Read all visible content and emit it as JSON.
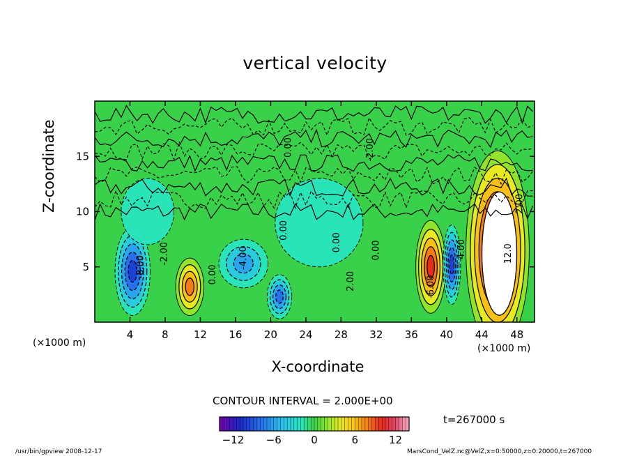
{
  "chart_data": {
    "type": "heatmap",
    "title": "vertical velocity",
    "xlabel": "X-coordinate",
    "ylabel": "Z-coordinate",
    "x_unit": "(×1000 m)",
    "y_unit": "(×1000 m)",
    "xlim": [
      0,
      50
    ],
    "ylim": [
      0,
      20
    ],
    "x_ticks": [
      4,
      8,
      12,
      16,
      20,
      24,
      28,
      32,
      36,
      40,
      44,
      48
    ],
    "y_ticks": [
      5,
      10,
      15
    ],
    "contour_interval_text": "CONTOUR INTERVAL = 2.000E+00",
    "contour_labels": [
      {
        "text": "-8.00",
        "x": 5.5,
        "z": 5.0
      },
      {
        "text": "-2.00",
        "x": 8.2,
        "z": 6.2
      },
      {
        "text": "0.00",
        "x": 13.7,
        "z": 4.3
      },
      {
        "text": "-4.00",
        "x": 17.2,
        "z": 5.8
      },
      {
        "text": "0.00",
        "x": 21.8,
        "z": 8.3
      },
      {
        "text": "0.00",
        "x": 27.8,
        "z": 7.2
      },
      {
        "text": "2.00",
        "x": 29.4,
        "z": 3.7
      },
      {
        "text": "0.00",
        "x": 32.3,
        "z": 6.5
      },
      {
        "text": "-2.00",
        "x": 31.6,
        "z": 15.6
      },
      {
        "text": "0.00",
        "x": 22.3,
        "z": 15.8
      },
      {
        "text": "-6.00",
        "x": 38.5,
        "z": 3.2
      },
      {
        "text": "4.00",
        "x": 42.0,
        "z": 6.6
      },
      {
        "text": "12.0",
        "x": 47.3,
        "z": 6.2
      },
      {
        "text": "2.00",
        "x": 48.6,
        "z": 10.7
      }
    ],
    "features": [
      {
        "kind": "updraft",
        "x": 10.8,
        "z": 3.2,
        "rx": 1.6,
        "rz": 2.6,
        "peak": 8
      },
      {
        "kind": "updraft",
        "x": 38.2,
        "z": 5.0,
        "rx": 1.7,
        "rz": 4.2,
        "peak": 10
      },
      {
        "kind": "updraft",
        "x": 45.8,
        "z": 6.5,
        "rx": 3.6,
        "rz": 9.0,
        "peak": 14
      },
      {
        "kind": "downdraft",
        "x": 4.3,
        "z": 4.6,
        "rx": 2.0,
        "rz": 4.0,
        "peak": -10
      },
      {
        "kind": "downdraft",
        "x": 16.9,
        "z": 5.3,
        "rx": 2.8,
        "rz": 2.2,
        "peak": -6
      },
      {
        "kind": "downdraft",
        "x": 21.0,
        "z": 2.3,
        "rx": 1.4,
        "rz": 2.0,
        "peak": -8
      },
      {
        "kind": "downdraft",
        "x": 40.6,
        "z": 5.2,
        "rx": 1.0,
        "rz": 3.6,
        "peak": -10
      },
      {
        "kind": "downdraft",
        "x": 25.5,
        "z": 9.0,
        "rx": 5.0,
        "rz": 4.0,
        "peak": -3
      },
      {
        "kind": "downdraft",
        "x": 6.0,
        "z": 10.0,
        "rx": 3.0,
        "rz": 3.0,
        "peak": -3
      }
    ],
    "colorbar": {
      "range": [
        -14,
        14
      ],
      "tick_values": [
        -12,
        -6,
        0,
        6,
        12
      ],
      "tick_labels": [
        "−12",
        "−6",
        "0",
        "6",
        "12"
      ]
    }
  },
  "annotations": {
    "time": "t=267000 s",
    "footer_left": "/usr/bin/gpview   2008-12-17",
    "footer_right": "MarsCond_VelZ.nc@VelZ,x=0:50000,z=0:20000,t=267000"
  }
}
